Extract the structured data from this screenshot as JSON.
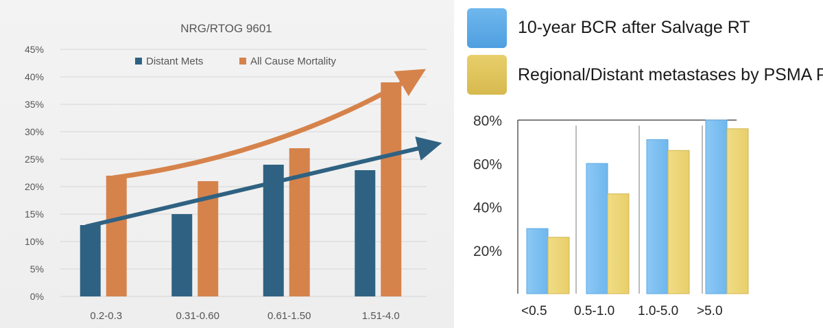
{
  "colors": {
    "distant": "#2f6282",
    "mortality": "#d6834b",
    "bcr": "#6fb7ee",
    "psma": "#e8cf6a"
  },
  "chart_data": [
    {
      "type": "bar",
      "title": "NRG/RTOG 9601",
      "categories": [
        "0.2-0.3",
        "0.31-0.60",
        "0.61-1.50",
        "1.51-4.0"
      ],
      "series": [
        {
          "name": "Distant Mets",
          "values": [
            13,
            15,
            24,
            23
          ]
        },
        {
          "name": "All Cause Mortality",
          "values": [
            22,
            21,
            27,
            39
          ]
        }
      ],
      "yticks": [
        "0%",
        "5%",
        "10%",
        "15%",
        "20%",
        "25%",
        "30%",
        "35%",
        "40%",
        "45%"
      ],
      "ylim": [
        0,
        45
      ],
      "legend": "top",
      "grid": true
    },
    {
      "type": "bar",
      "categories": [
        "<0.5",
        "0.5-1.0",
        "1.0-5.0",
        ">5.0"
      ],
      "series": [
        {
          "name": "10-year BCR after Salvage RT",
          "values": [
            30,
            60,
            71,
            80
          ]
        },
        {
          "name": "Regional/Distant metastases by PSMA PET",
          "values": [
            26,
            46,
            66,
            76
          ]
        }
      ],
      "yticks": [
        "20%",
        "40%",
        "60%",
        "80%"
      ],
      "ylim": [
        0,
        80
      ],
      "legend": "top",
      "grid": false
    }
  ]
}
